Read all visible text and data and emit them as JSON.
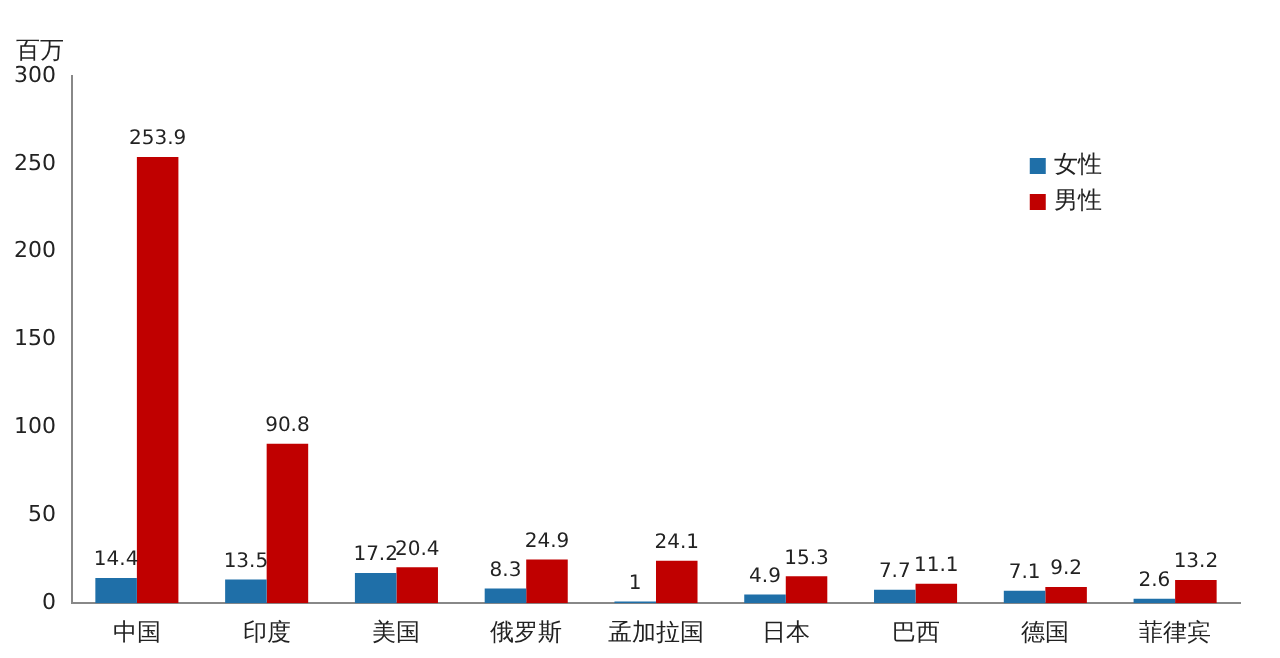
{
  "chart_data": {
    "type": "bar",
    "ylabel": "百万",
    "categories": [
      "中国",
      "印度",
      "美国",
      "俄罗斯",
      "孟加拉国",
      "日本",
      "巴西",
      "德国",
      "菲律宾"
    ],
    "series": [
      {
        "name": "女性",
        "color": "#1f6fa8",
        "values": [
          14.4,
          13.5,
          17.2,
          8.3,
          1,
          4.9,
          7.7,
          7.1,
          2.6
        ]
      },
      {
        "name": "男性",
        "color": "#c00000",
        "values": [
          253.9,
          90.8,
          20.4,
          24.9,
          24.1,
          15.3,
          11.1,
          9.2,
          13.2
        ]
      }
    ],
    "ylim": [
      0,
      300
    ],
    "yticks": [
      0,
      50,
      100,
      150,
      200,
      250,
      300
    ],
    "grid": false,
    "legend": "top right",
    "data_labels": true
  }
}
